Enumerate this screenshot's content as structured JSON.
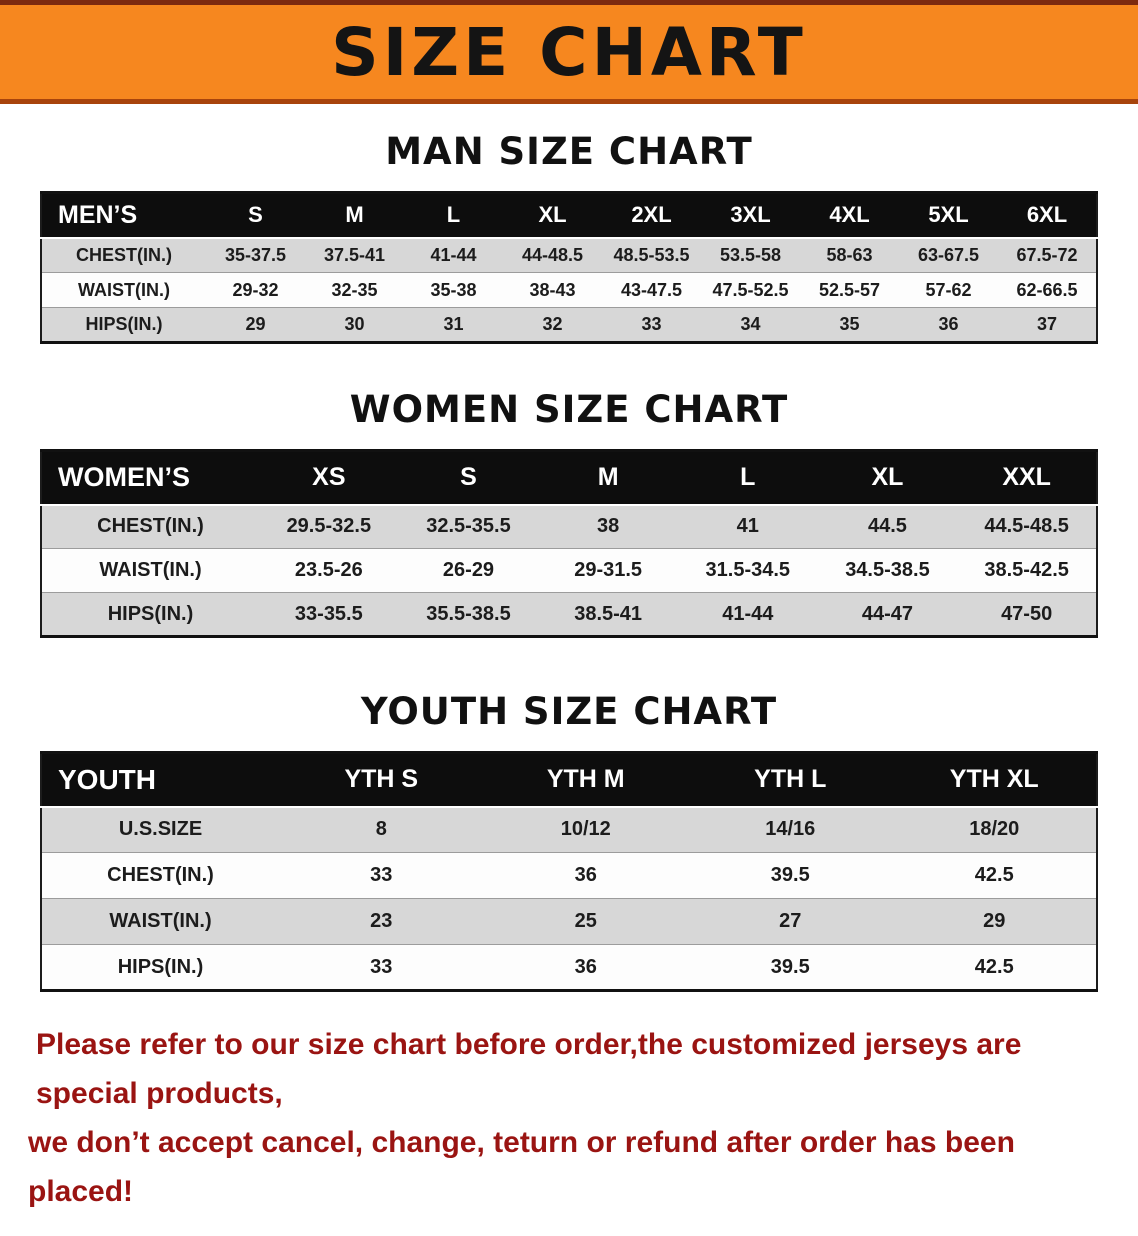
{
  "banner": {
    "title": "SIZE CHART",
    "background_color": "#f6871f",
    "text_color": "#141414"
  },
  "sections": [
    {
      "id": "men",
      "title": "MAN SIZE CHART",
      "corner_label": "MEN’S",
      "columns": [
        "S",
        "M",
        "L",
        "XL",
        "2XL",
        "3XL",
        "4XL",
        "5XL",
        "6XL"
      ],
      "rows": [
        {
          "label": "CHEST(IN.)",
          "values": [
            "35-37.5",
            "37.5-41",
            "41-44",
            "44-48.5",
            "48.5-53.5",
            "53.5-58",
            "58-63",
            "63-67.5",
            "67.5-72"
          ]
        },
        {
          "label": "WAIST(IN.)",
          "values": [
            "29-32",
            "32-35",
            "35-38",
            "38-43",
            "43-47.5",
            "47.5-52.5",
            "52.5-57",
            "57-62",
            "62-66.5"
          ]
        },
        {
          "label": "HIPS(IN.)",
          "values": [
            "29",
            "30",
            "31",
            "32",
            "33",
            "34",
            "35",
            "36",
            "37"
          ]
        }
      ]
    },
    {
      "id": "women",
      "title": "WOMEN SIZE CHART",
      "corner_label": "WOMEN’S",
      "columns": [
        "XS",
        "S",
        "M",
        "L",
        "XL",
        "XXL"
      ],
      "rows": [
        {
          "label": "CHEST(IN.)",
          "values": [
            "29.5-32.5",
            "32.5-35.5",
            "38",
            "41",
            "44.5",
            "44.5-48.5"
          ]
        },
        {
          "label": "WAIST(IN.)",
          "values": [
            "23.5-26",
            "26-29",
            "29-31.5",
            "31.5-34.5",
            "34.5-38.5",
            "38.5-42.5"
          ]
        },
        {
          "label": "HIPS(IN.)",
          "values": [
            "33-35.5",
            "35.5-38.5",
            "38.5-41",
            "41-44",
            "44-47",
            "47-50"
          ]
        }
      ]
    },
    {
      "id": "youth",
      "title": "YOUTH SIZE CHART",
      "corner_label": "YOUTH",
      "columns": [
        "YTH S",
        "YTH M",
        "YTH L",
        "YTH XL"
      ],
      "rows": [
        {
          "label": "U.S.SIZE",
          "values": [
            "8",
            "10/12",
            "14/16",
            "18/20"
          ]
        },
        {
          "label": "CHEST(IN.)",
          "values": [
            "33",
            "36",
            "39.5",
            "42.5"
          ]
        },
        {
          "label": "WAIST(IN.)",
          "values": [
            "23",
            "25",
            "27",
            "29"
          ]
        },
        {
          "label": "HIPS(IN.)",
          "values": [
            "33",
            "36",
            "39.5",
            "42.5"
          ]
        }
      ]
    }
  ],
  "footer": {
    "lines": [
      "Please refer to our size chart before order,the customized jerseys are special products,",
      "we don’t accept cancel, change, teturn or refund after order has been placed!"
    ],
    "text_color": "#9a1412"
  }
}
